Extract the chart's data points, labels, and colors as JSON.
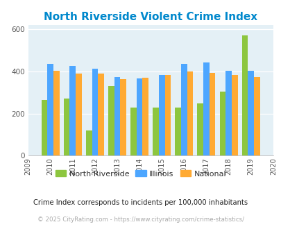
{
  "title": "North Riverside Violent Crime Index",
  "years": [
    2009,
    2010,
    2011,
    2012,
    2013,
    2014,
    2015,
    2016,
    2017,
    2018,
    2019,
    2020
  ],
  "data_years": [
    2010,
    2011,
    2012,
    2013,
    2014,
    2015,
    2016,
    2017,
    2018,
    2019
  ],
  "north_riverside": [
    265,
    270,
    120,
    330,
    228,
    228,
    228,
    248,
    305,
    572
  ],
  "illinois": [
    435,
    428,
    412,
    373,
    368,
    383,
    438,
    442,
    405,
    405
  ],
  "national": [
    405,
    390,
    390,
    365,
    372,
    383,
    400,
    395,
    383,
    375
  ],
  "bar_colors": {
    "north_riverside": "#8dc63f",
    "illinois": "#4da6ff",
    "national": "#ffaa33"
  },
  "background_color": "#e4f0f6",
  "ylim": [
    0,
    620
  ],
  "yticks": [
    0,
    200,
    400,
    600
  ],
  "legend_labels": [
    "North Riverside",
    "Illinois",
    "National"
  ],
  "footnote1": "Crime Index corresponds to incidents per 100,000 inhabitants",
  "footnote2": "© 2025 CityRating.com - https://www.cityrating.com/crime-statistics/",
  "title_color": "#0088cc",
  "footnote1_color": "#222222",
  "footnote2_color": "#aaaaaa",
  "bar_width": 0.27
}
